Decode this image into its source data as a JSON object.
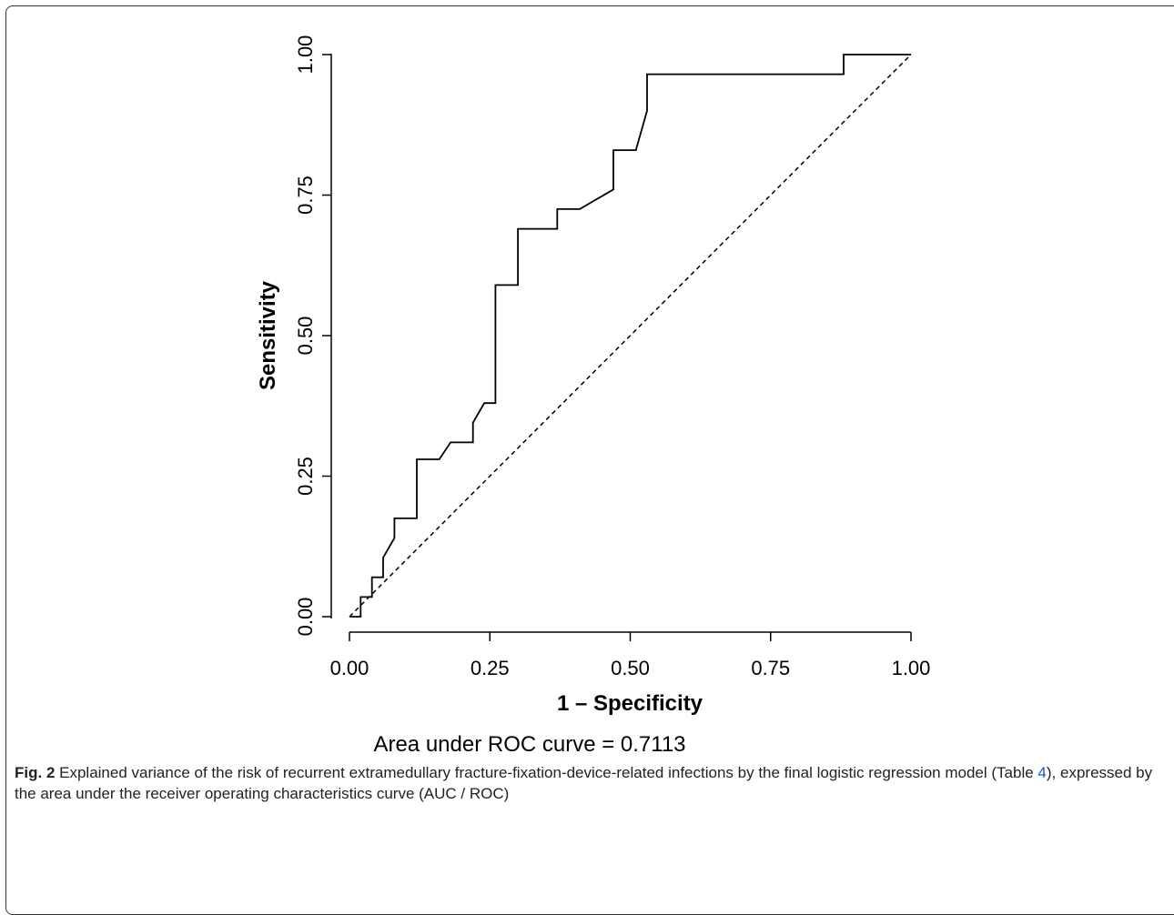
{
  "chart_data": {
    "type": "line",
    "xlabel": "1 – Specificity",
    "ylabel": "Sensitivity",
    "xlim": [
      0,
      1
    ],
    "ylim": [
      0,
      1
    ],
    "xticks": [
      "0.00",
      "0.25",
      "0.50",
      "0.75",
      "1.00"
    ],
    "yticks": [
      "0.00",
      "0.25",
      "0.50",
      "0.75",
      "1.00"
    ],
    "grid": false,
    "annotation": "Area under ROC curve = 0.7113",
    "series": [
      {
        "style": "solid",
        "x": [
          0.0,
          0.02,
          0.02,
          0.04,
          0.04,
          0.06,
          0.06,
          0.08,
          0.08,
          0.12,
          0.12,
          0.16,
          0.18,
          0.22,
          0.22,
          0.24,
          0.26,
          0.26,
          0.3,
          0.3,
          0.37,
          0.37,
          0.41,
          0.47,
          0.47,
          0.51,
          0.53,
          0.53,
          0.88,
          0.88,
          1.0
        ],
        "y": [
          0.0,
          0.0,
          0.035,
          0.035,
          0.07,
          0.07,
          0.105,
          0.14,
          0.175,
          0.175,
          0.28,
          0.28,
          0.31,
          0.31,
          0.345,
          0.38,
          0.38,
          0.59,
          0.59,
          0.69,
          0.69,
          0.725,
          0.725,
          0.76,
          0.83,
          0.83,
          0.9,
          0.965,
          0.965,
          1.0,
          1.0
        ]
      },
      {
        "style": "dashed",
        "x": [
          0,
          1
        ],
        "y": [
          0,
          1
        ]
      }
    ]
  },
  "caption": {
    "fig_label": "Fig. 2",
    "text_before_ref": " Explained variance of the risk of recurrent extramedullary fracture-fixation-device-related infections by the final logistic regression model (Table ",
    "ref": "4",
    "text_after_ref": "), expressed by the area under the receiver operating characteristics curve (AUC / ROC)"
  }
}
